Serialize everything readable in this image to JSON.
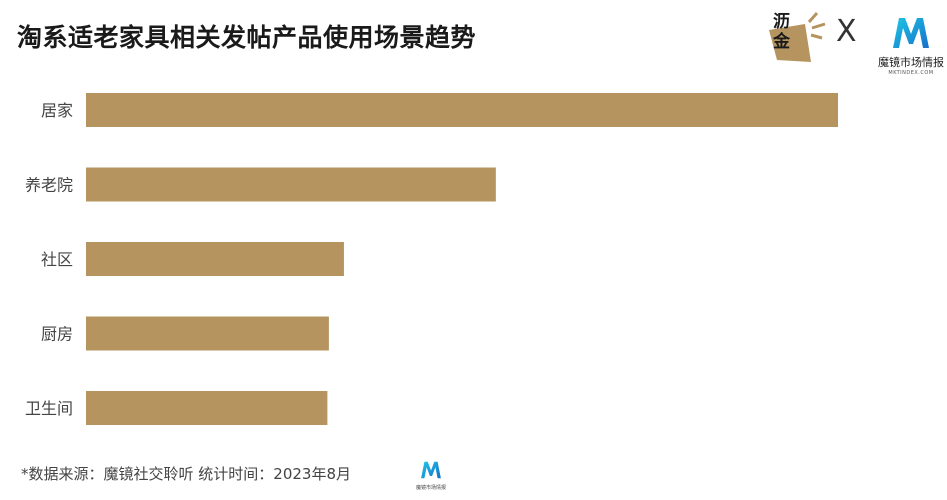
{
  "title": "淘系适老家具相关发帖产品使用场景趋势",
  "logos": {
    "lijin_text": "沥金",
    "lijin_sub": "FINDING GOLD",
    "separator": "X",
    "brand_name": "魔镜市场情报",
    "brand_url": "MKTINDEX.COM"
  },
  "colors": {
    "bar": "#b5945f"
  },
  "chart_data": {
    "type": "bar",
    "orientation": "horizontal",
    "title": "淘系适老家具相关发帖产品使用场景趋势",
    "categories": [
      "居家",
      "养老院",
      "社区",
      "厨房",
      "卫生间"
    ],
    "values": [
      100,
      54.5,
      34.3,
      32.3,
      32.1
    ],
    "xlim": [
      0,
      100
    ],
    "grid": false,
    "legend": "none"
  },
  "footer": {
    "text": "*数据来源：魔镜社交聆听 统计时间：2023年8月"
  }
}
